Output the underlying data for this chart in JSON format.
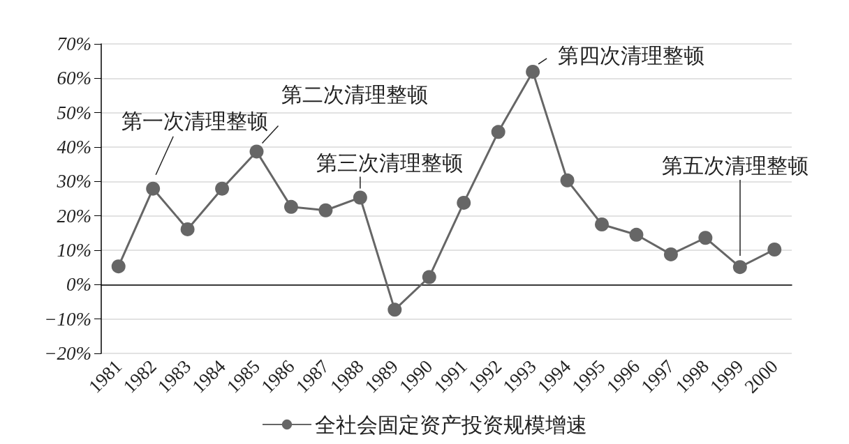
{
  "chart_data": {
    "type": "line",
    "categories": [
      "1981",
      "1982",
      "1983",
      "1984",
      "1985",
      "1986",
      "1987",
      "1988",
      "1989",
      "1990",
      "1991",
      "1992",
      "1993",
      "1994",
      "1995",
      "1996",
      "1997",
      "1998",
      "1999",
      "2000"
    ],
    "series": [
      {
        "name": "全社会固定资产投资规模增速",
        "color": "#666666",
        "values": [
          5.3,
          27.9,
          16.1,
          27.9,
          38.7,
          22.6,
          21.6,
          25.3,
          -7.3,
          2.2,
          23.8,
          44.4,
          61.9,
          30.3,
          17.5,
          14.5,
          8.8,
          13.6,
          5.1,
          10.2
        ]
      }
    ],
    "ylim": [
      -20,
      70
    ],
    "yticks": [
      {
        "value": -20,
        "label": "−20%"
      },
      {
        "value": -10,
        "label": "−10%"
      },
      {
        "value": 0,
        "label": "0%"
      },
      {
        "value": 10,
        "label": "10%"
      },
      {
        "value": 20,
        "label": "20%"
      },
      {
        "value": 30,
        "label": "30%"
      },
      {
        "value": 40,
        "label": "40%"
      },
      {
        "value": 50,
        "label": "50%"
      },
      {
        "value": 60,
        "label": "60%"
      },
      {
        "value": 70,
        "label": "70%"
      }
    ],
    "annotations": [
      {
        "text": "第一次清理整顿",
        "x": "1982",
        "y": 27.9
      },
      {
        "text": "第二次清理整顿",
        "x": "1985",
        "y": 38.7
      },
      {
        "text": "第三次清理整顿",
        "x": "1988",
        "y": 25.3
      },
      {
        "text": "第四次清理整顿",
        "x": "1993",
        "y": 61.9
      },
      "第五次清理整顿"
    ],
    "grid": "y",
    "legend": "bottom",
    "marker": "circle",
    "line_style": "solid"
  }
}
